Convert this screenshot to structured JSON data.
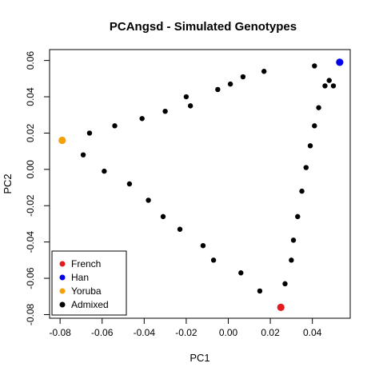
{
  "chart_data": {
    "type": "scatter",
    "title": "PCAngsd - Simulated Genotypes",
    "xlabel": "PC1",
    "ylabel": "PC2",
    "xlim": [
      -0.085,
      0.058
    ],
    "ylim": [
      -0.082,
      0.066
    ],
    "xticks": [
      -0.08,
      -0.06,
      -0.04,
      -0.02,
      0.0,
      0.02,
      0.04
    ],
    "xtick_labels": [
      "-0.08",
      "-0.06",
      "-0.04",
      "-0.02",
      "0.00",
      "0.02",
      "0.04"
    ],
    "yticks": [
      -0.08,
      -0.06,
      -0.04,
      -0.02,
      0.0,
      0.02,
      0.04,
      0.06
    ],
    "ytick_labels": [
      "-0.08",
      "-0.06",
      "-0.04",
      "-0.02",
      "0.00",
      "0.02",
      "0.04",
      "0.06"
    ],
    "grid": false,
    "legend_position": "bottom-left",
    "series": [
      {
        "name": "French",
        "color": "#e41a1c",
        "x": [
          0.025
        ],
        "y": [
          -0.076
        ]
      },
      {
        "name": "Han",
        "color": "#0000ee",
        "x": [
          0.053
        ],
        "y": [
          0.059
        ]
      },
      {
        "name": "Yoruba",
        "color": "#f5a00a",
        "x": [
          -0.079
        ],
        "y": [
          0.016
        ]
      },
      {
        "name": "Admixed",
        "color": "#000000",
        "x": [
          -0.069,
          -0.066,
          -0.059,
          -0.054,
          -0.047,
          -0.041,
          -0.038,
          -0.03,
          -0.031,
          -0.023,
          -0.018,
          -0.02,
          -0.012,
          -0.005,
          -0.007,
          0.001,
          0.006,
          0.007,
          0.015,
          0.017,
          0.027,
          0.03,
          0.031,
          0.033,
          0.035,
          0.037,
          0.039,
          0.041,
          0.041,
          0.043,
          0.046,
          0.048,
          0.05
        ],
        "y": [
          0.008,
          0.02,
          -0.001,
          0.024,
          -0.008,
          0.028,
          -0.017,
          0.032,
          -0.026,
          -0.033,
          0.035,
          0.04,
          -0.042,
          0.044,
          -0.05,
          0.047,
          -0.057,
          0.051,
          -0.067,
          0.054,
          -0.063,
          -0.05,
          -0.039,
          -0.026,
          -0.012,
          0.001,
          0.013,
          0.024,
          0.057,
          0.034,
          0.046,
          0.049,
          0.046
        ]
      }
    ]
  }
}
